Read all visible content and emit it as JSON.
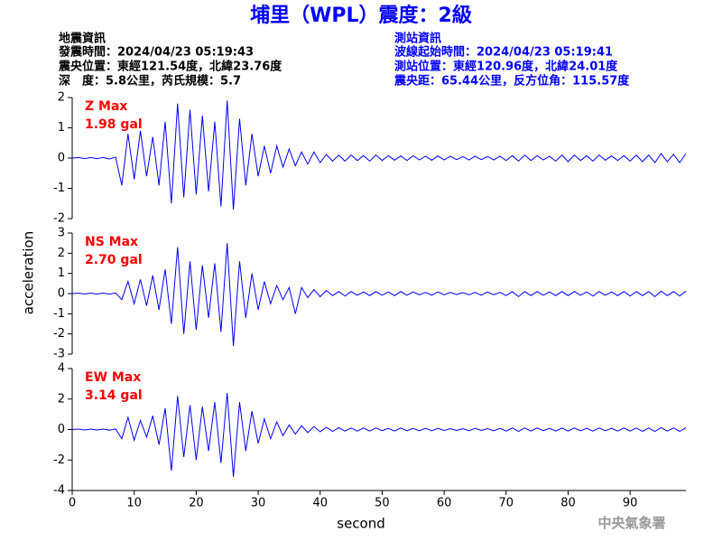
{
  "header": {
    "title": "埔里（WPL）震度：2級",
    "quake_info": [
      "地震資訊",
      "發震時間：2024/04/23 05:19:43",
      "震央位置：東經121.54度，北緯23.76度",
      "深　度：5.8公里，芮氏規模：5.7"
    ],
    "station_info": [
      "測站資訊",
      "波線起始時間：2024/04/23 05:19:41",
      "測站位置：東經120.96度，北緯24.01度",
      "震央距：65.44公里，反方位角：115.57度"
    ],
    "y_label": "acceleration",
    "footer": "中央氣象署"
  },
  "chart_data": [
    {
      "type": "line",
      "annotation": [
        "Z Max",
        "1.98 gal"
      ],
      "color": "#0000ff",
      "x": [
        0,
        1,
        2,
        3,
        4,
        5,
        6,
        7,
        8,
        9,
        10,
        11,
        12,
        13,
        14,
        15,
        16,
        17,
        18,
        19,
        20,
        21,
        22,
        23,
        24,
        25,
        26,
        27,
        28,
        29,
        30,
        31,
        32,
        33,
        34,
        35,
        36,
        37,
        38,
        39,
        40,
        41,
        42,
        43,
        44,
        45,
        46,
        47,
        48,
        49,
        50,
        51,
        52,
        53,
        54,
        55,
        56,
        57,
        58,
        59,
        60,
        61,
        62,
        63,
        64,
        65,
        66,
        67,
        68,
        69,
        70,
        71,
        72,
        73,
        74,
        75,
        76,
        77,
        78,
        79,
        80,
        81,
        82,
        83,
        84,
        85,
        86,
        87,
        88,
        89,
        90,
        91,
        92,
        93,
        94,
        95,
        96,
        97,
        98,
        99
      ],
      "values": [
        0,
        0.02,
        -0.02,
        0.02,
        -0.02,
        0.02,
        -0.03,
        0.03,
        -0.9,
        0.8,
        -0.7,
        0.9,
        -0.6,
        0.7,
        -0.9,
        1.2,
        -1.5,
        1.8,
        -1.3,
        1.6,
        -1.2,
        1.4,
        -1.1,
        1.2,
        -1.6,
        1.9,
        -1.7,
        1.3,
        -0.9,
        0.8,
        -0.6,
        0.4,
        -0.5,
        0.4,
        -0.3,
        0.3,
        -0.25,
        0.2,
        -0.2,
        0.2,
        -0.15,
        0.12,
        -0.1,
        0.1,
        -0.1,
        0.1,
        -0.08,
        0.08,
        -0.1,
        0.1,
        -0.08,
        0.08,
        -0.07,
        0.07,
        -0.08,
        0.08,
        -0.06,
        0.06,
        -0.07,
        0.07,
        -0.06,
        0.06,
        -0.05,
        0.05,
        -0.06,
        0.06,
        -0.05,
        0.05,
        -0.06,
        0.06,
        -0.08,
        0.08,
        -0.1,
        0.1,
        -0.08,
        0.08,
        -0.06,
        0.06,
        -0.1,
        0.1,
        -0.12,
        0.1,
        -0.08,
        0.08,
        -0.1,
        0.1,
        -0.07,
        0.07,
        -0.08,
        0.08,
        -0.1,
        0.1,
        -0.12,
        0.1,
        -0.15,
        0.15,
        -0.12,
        0.12,
        -0.15,
        0.15
      ],
      "xlim": [
        0,
        99
      ],
      "ylim": [
        -2,
        2
      ],
      "yticks": [
        -2,
        -1,
        0,
        1,
        2
      ]
    },
    {
      "type": "line",
      "annotation": [
        "NS Max",
        "2.70 gal"
      ],
      "color": "#0000ff",
      "x": [
        0,
        1,
        2,
        3,
        4,
        5,
        6,
        7,
        8,
        9,
        10,
        11,
        12,
        13,
        14,
        15,
        16,
        17,
        18,
        19,
        20,
        21,
        22,
        23,
        24,
        25,
        26,
        27,
        28,
        29,
        30,
        31,
        32,
        33,
        34,
        35,
        36,
        37,
        38,
        39,
        40,
        41,
        42,
        43,
        44,
        45,
        46,
        47,
        48,
        49,
        50,
        51,
        52,
        53,
        54,
        55,
        56,
        57,
        58,
        59,
        60,
        61,
        62,
        63,
        64,
        65,
        66,
        67,
        68,
        69,
        70,
        71,
        72,
        73,
        74,
        75,
        76,
        77,
        78,
        79,
        80,
        81,
        82,
        83,
        84,
        85,
        86,
        87,
        88,
        89,
        90,
        91,
        92,
        93,
        94,
        95,
        96,
        97,
        98,
        99
      ],
      "values": [
        0,
        0.02,
        -0.02,
        0.02,
        -0.02,
        0.02,
        -0.03,
        0.03,
        -0.3,
        0.6,
        -0.5,
        0.7,
        -0.6,
        0.9,
        -0.8,
        1.2,
        -1.5,
        2.3,
        -2,
        1.6,
        -1.8,
        1.4,
        -1.2,
        1.5,
        -1.9,
        2.5,
        -2.6,
        1.6,
        -1.2,
        1,
        -0.8,
        0.6,
        -0.5,
        0.4,
        -0.3,
        0.3,
        -1,
        0.3,
        -0.2,
        0.2,
        -0.15,
        0.15,
        -0.1,
        0.1,
        -0.12,
        0.1,
        -0.08,
        0.08,
        -0.1,
        0.1,
        -0.08,
        0.08,
        -0.1,
        0.1,
        -0.08,
        0.08,
        -0.06,
        0.06,
        -0.08,
        0.08,
        -0.06,
        0.06,
        -0.05,
        0.05,
        -0.06,
        0.06,
        -0.08,
        0.08,
        -0.06,
        0.06,
        -0.1,
        0.1,
        -0.15,
        0.1,
        -0.1,
        0.1,
        -0.08,
        0.08,
        -0.1,
        0.1,
        -0.1,
        0.1,
        -0.08,
        0.08,
        -0.12,
        0.1,
        -0.08,
        0.08,
        -0.1,
        0.1,
        -0.12,
        0.1,
        -0.1,
        0.1,
        -0.15,
        0.12,
        -0.1,
        0.1,
        -0.12,
        0.12
      ],
      "xlim": [
        0,
        99
      ],
      "ylim": [
        -3,
        3
      ],
      "yticks": [
        -3,
        -2,
        -1,
        0,
        1,
        2,
        3
      ]
    },
    {
      "type": "line",
      "annotation": [
        "EW Max",
        "3.14 gal"
      ],
      "color": "#0000ff",
      "x": [
        0,
        1,
        2,
        3,
        4,
        5,
        6,
        7,
        8,
        9,
        10,
        11,
        12,
        13,
        14,
        15,
        16,
        17,
        18,
        19,
        20,
        21,
        22,
        23,
        24,
        25,
        26,
        27,
        28,
        29,
        30,
        31,
        32,
        33,
        34,
        35,
        36,
        37,
        38,
        39,
        40,
        41,
        42,
        43,
        44,
        45,
        46,
        47,
        48,
        49,
        50,
        51,
        52,
        53,
        54,
        55,
        56,
        57,
        58,
        59,
        60,
        61,
        62,
        63,
        64,
        65,
        66,
        67,
        68,
        69,
        70,
        71,
        72,
        73,
        74,
        75,
        76,
        77,
        78,
        79,
        80,
        81,
        82,
        83,
        84,
        85,
        86,
        87,
        88,
        89,
        90,
        91,
        92,
        93,
        94,
        95,
        96,
        97,
        98,
        99
      ],
      "values": [
        0,
        0.03,
        -0.03,
        0.03,
        -0.03,
        0.03,
        -0.04,
        0.04,
        -0.6,
        0.8,
        -0.7,
        0.6,
        -0.5,
        0.9,
        -1,
        1.4,
        -2.7,
        2.2,
        -1.8,
        1.6,
        -2,
        1.5,
        -1.4,
        1.8,
        -2.2,
        2.4,
        -3.1,
        1.8,
        -1.4,
        1.2,
        -0.9,
        0.7,
        -0.6,
        0.5,
        -0.4,
        0.3,
        -0.3,
        0.25,
        -0.2,
        0.2,
        -0.15,
        0.15,
        -0.12,
        0.12,
        -0.1,
        0.1,
        -0.1,
        0.1,
        -0.1,
        0.1,
        -0.08,
        0.08,
        -0.1,
        0.1,
        -0.08,
        0.08,
        -0.08,
        0.08,
        -0.08,
        0.08,
        -0.06,
        0.06,
        -0.06,
        0.06,
        -0.08,
        0.08,
        -0.06,
        0.06,
        -0.08,
        0.08,
        -0.1,
        0.1,
        -0.12,
        0.1,
        -0.1,
        0.1,
        -0.08,
        0.08,
        -0.1,
        0.1,
        -0.1,
        0.1,
        -0.08,
        0.08,
        -0.1,
        0.1,
        -0.08,
        0.08,
        -0.1,
        0.1,
        -0.1,
        0.1,
        -0.12,
        0.1,
        -0.12,
        0.12,
        -0.1,
        0.1,
        -0.12,
        0.12
      ],
      "xlim": [
        0,
        99
      ],
      "xticks": [
        0,
        10,
        20,
        30,
        40,
        50,
        60,
        70,
        80,
        90
      ],
      "x_label": "second",
      "ylim": [
        -4,
        4
      ],
      "yticks": [
        -4,
        -2,
        0,
        2,
        4
      ]
    }
  ]
}
